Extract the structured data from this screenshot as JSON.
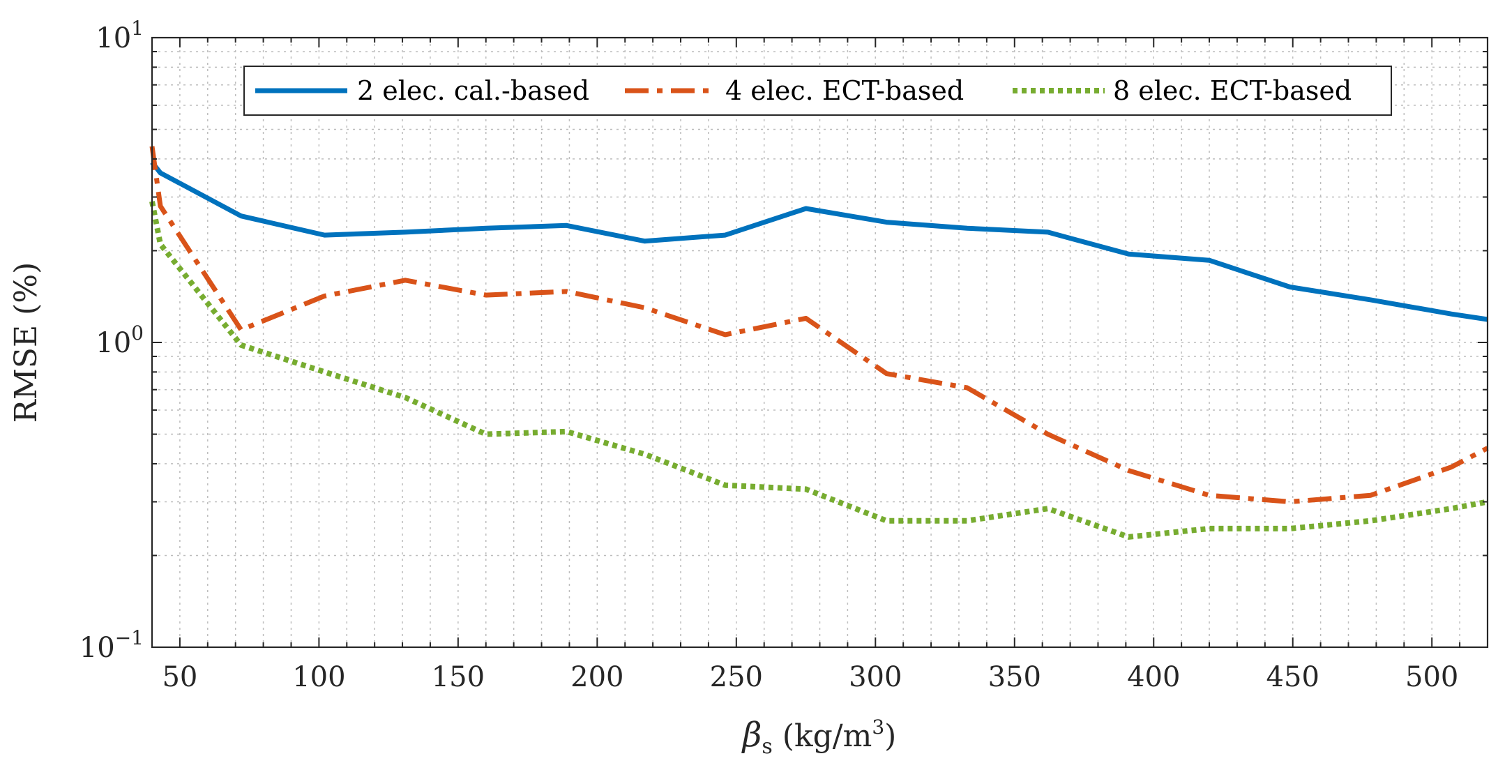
{
  "chart_data": {
    "type": "line",
    "title": "",
    "xlabel": {
      "symbol": "β",
      "subscript": "s",
      "unit_prefix": " (kg/m",
      "superscript": "3",
      "unit_suffix": ")"
    },
    "ylabel": "RMSE (%)",
    "xlim": [
      40,
      520
    ],
    "ylim": [
      0.1,
      10
    ],
    "yscale": "log",
    "xticks": [
      50,
      100,
      150,
      200,
      250,
      300,
      350,
      400,
      450,
      500
    ],
    "xtick_labels": [
      "50",
      "100",
      "150",
      "200",
      "250",
      "300",
      "350",
      "400",
      "450",
      "500"
    ],
    "yticks": [
      {
        "value": 0.1,
        "base": "10",
        "exp": "−1"
      },
      {
        "value": 1,
        "base": "10",
        "exp": "0"
      },
      {
        "value": 10,
        "base": "10",
        "exp": "1"
      }
    ],
    "grid": true,
    "legend_position": "top",
    "series": [
      {
        "name": "2 elec. cal.-based",
        "color": "#0072BD",
        "style": "solid",
        "x": [
          40,
          43,
          72,
          102,
          131,
          160,
          189,
          217,
          246,
          275,
          304,
          333,
          362,
          391,
          420,
          449,
          478,
          507,
          520
        ],
        "y": [
          3.9,
          3.6,
          2.6,
          2.25,
          2.3,
          2.37,
          2.42,
          2.15,
          2.25,
          2.75,
          2.48,
          2.37,
          2.3,
          1.95,
          1.86,
          1.52,
          1.38,
          1.24,
          1.19
        ]
      },
      {
        "name": "4 elec. ECT-based",
        "color": "#D95319",
        "style": "dashdot",
        "x": [
          40,
          43,
          72,
          102,
          131,
          160,
          189,
          217,
          246,
          275,
          304,
          333,
          362,
          391,
          420,
          449,
          478,
          507,
          520
        ],
        "y": [
          4.4,
          2.8,
          1.1,
          1.42,
          1.6,
          1.43,
          1.47,
          1.3,
          1.06,
          1.2,
          0.79,
          0.71,
          0.5,
          0.38,
          0.315,
          0.3,
          0.315,
          0.39,
          0.45
        ]
      },
      {
        "name": "8 elec. ECT-based",
        "color": "#77AC30",
        "style": "dotted",
        "x": [
          40,
          43,
          72,
          102,
          131,
          160,
          189,
          217,
          246,
          275,
          304,
          333,
          362,
          391,
          420,
          449,
          478,
          507,
          520
        ],
        "y": [
          2.9,
          2.1,
          0.98,
          0.8,
          0.66,
          0.5,
          0.51,
          0.43,
          0.34,
          0.33,
          0.26,
          0.26,
          0.285,
          0.23,
          0.245,
          0.245,
          0.26,
          0.285,
          0.3
        ]
      }
    ]
  }
}
